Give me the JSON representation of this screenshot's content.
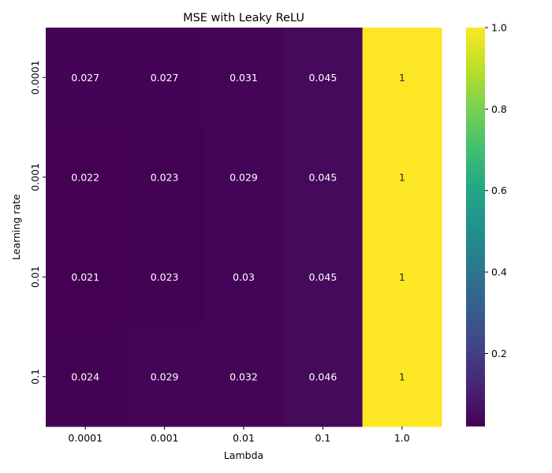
{
  "chart_data": {
    "type": "heatmap",
    "title": "MSE with Leaky ReLU",
    "xlabel": "Lambda",
    "ylabel": "Learning rate",
    "x_categories": [
      "0.0001",
      "0.001",
      "0.01",
      "0.1",
      "1.0"
    ],
    "y_categories": [
      "0.0001",
      "0.001",
      "0.01",
      "0.1"
    ],
    "values": [
      [
        0.027,
        0.027,
        0.031,
        0.045,
        1
      ],
      [
        0.022,
        0.023,
        0.029,
        0.045,
        1
      ],
      [
        0.021,
        0.023,
        0.03,
        0.045,
        1
      ],
      [
        0.024,
        0.029,
        0.032,
        0.046,
        1
      ]
    ],
    "annotations": [
      [
        "0.027",
        "0.027",
        "0.031",
        "0.045",
        "1"
      ],
      [
        "0.022",
        "0.023",
        "0.029",
        "0.045",
        "1"
      ],
      [
        "0.021",
        "0.023",
        "0.03",
        "0.045",
        "1"
      ],
      [
        "0.024",
        "0.029",
        "0.032",
        "0.046",
        "1"
      ]
    ],
    "colormap": "viridis",
    "colorbar": {
      "range": [
        0.021,
        1.0
      ],
      "ticks": [
        0.2,
        0.4,
        0.6,
        0.8,
        1.0
      ],
      "tick_labels": [
        "0.2",
        "0.4",
        "0.6",
        "0.8",
        "1.0"
      ]
    }
  }
}
